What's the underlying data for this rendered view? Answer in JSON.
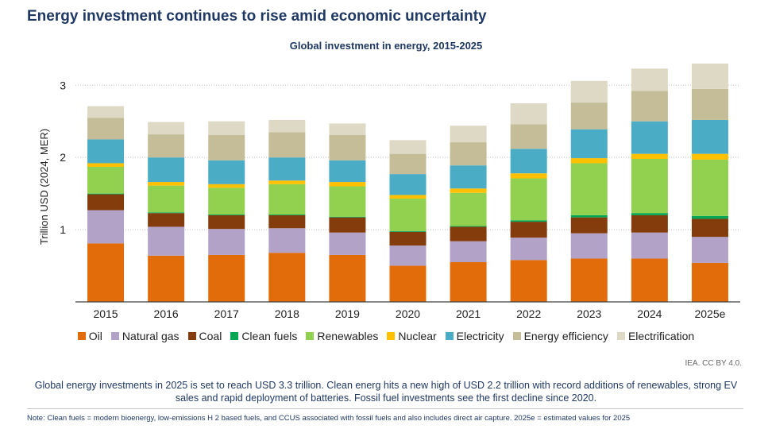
{
  "headline": "Energy investment continues to rise amid economic uncertainty",
  "credit": "IEA. CC BY 4.0.",
  "caption": "Global energy investments in 2025 is set to reach USD 3.3 trillion. Clean energ hits a new high of USD 2.2 trillion with record additions of renewables, strong EV sales and rapid deployment of batteries. Fossil fuel investments see the first decline since 2020.",
  "note": "Note: Clean fuels = modern bioenergy, low-emissions H 2 based fuels, and CCUS associated with fossil fuels and also includes direct air capture. 2025e = estimated values for 2025",
  "chart_data": {
    "type": "bar",
    "stacked": true,
    "title": "Global investment in energy, 2015-2025",
    "ylabel": "Trillion USD (2024, MER)",
    "xlabel": "",
    "ylim": [
      0,
      3.3
    ],
    "yticks": [
      1,
      2,
      3
    ],
    "grid": true,
    "legend_position": "bottom",
    "categories": [
      "2015",
      "2016",
      "2017",
      "2018",
      "2019",
      "2020",
      "2021",
      "2022",
      "2023",
      "2024",
      "2025e"
    ],
    "series": [
      {
        "name": "Oil",
        "color": "#e36c0a",
        "values": [
          0.81,
          0.64,
          0.65,
          0.68,
          0.65,
          0.5,
          0.55,
          0.58,
          0.6,
          0.6,
          0.54
        ]
      },
      {
        "name": "Natural gas",
        "color": "#b3a2c7",
        "values": [
          0.46,
          0.4,
          0.36,
          0.34,
          0.31,
          0.28,
          0.29,
          0.31,
          0.35,
          0.36,
          0.36
        ]
      },
      {
        "name": "Coal",
        "color": "#843c0c",
        "values": [
          0.22,
          0.19,
          0.19,
          0.18,
          0.21,
          0.19,
          0.2,
          0.22,
          0.22,
          0.24,
          0.25
        ]
      },
      {
        "name": "Clean fuels",
        "color": "#00a651",
        "values": [
          0.01,
          0.01,
          0.01,
          0.01,
          0.01,
          0.01,
          0.01,
          0.02,
          0.03,
          0.03,
          0.04
        ]
      },
      {
        "name": "Renewables",
        "color": "#92d050",
        "values": [
          0.37,
          0.37,
          0.37,
          0.42,
          0.42,
          0.45,
          0.46,
          0.58,
          0.72,
          0.75,
          0.78
        ]
      },
      {
        "name": "Nuclear",
        "color": "#ffc000",
        "values": [
          0.05,
          0.05,
          0.05,
          0.05,
          0.06,
          0.05,
          0.06,
          0.07,
          0.07,
          0.07,
          0.08
        ]
      },
      {
        "name": "Electricity",
        "color": "#4bacc6",
        "values": [
          0.33,
          0.34,
          0.33,
          0.32,
          0.3,
          0.29,
          0.32,
          0.34,
          0.4,
          0.45,
          0.47
        ]
      },
      {
        "name": "Energy efficiency",
        "color": "#c4bd97",
        "values": [
          0.3,
          0.32,
          0.35,
          0.35,
          0.35,
          0.28,
          0.32,
          0.34,
          0.37,
          0.42,
          0.43
        ]
      },
      {
        "name": "Electrification",
        "color": "#ddd9c4",
        "values": [
          0.16,
          0.17,
          0.19,
          0.17,
          0.16,
          0.19,
          0.23,
          0.29,
          0.3,
          0.31,
          0.35
        ]
      }
    ]
  }
}
